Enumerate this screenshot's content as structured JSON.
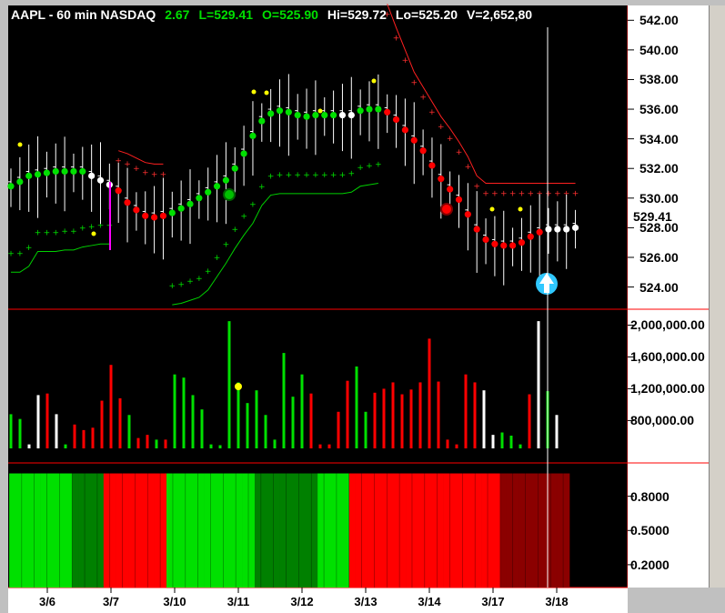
{
  "header": {
    "symbol": "AAPL - 60 min  NASDAQ",
    "change": "2.67",
    "low": "L=529.41",
    "open": "O=525.90",
    "high": "Hi=529.72",
    "lo": "Lo=525.20",
    "volume": "V=2,652,80"
  },
  "last_price_label": "529.41",
  "colors": {
    "up": "#00e000",
    "down": "#ff0000",
    "neutral": "#ffffff",
    "dark_up": "#008000",
    "dark_down": "#8b0000",
    "background": "#000000",
    "pane_divider": "#ff0000"
  },
  "chart_data": [
    {
      "type": "line",
      "pane": "price",
      "ylim": [
        522.5,
        543.0
      ],
      "yticks": [
        "542.00",
        "540.00",
        "538.00",
        "536.00",
        "534.00",
        "532.00",
        "530.00",
        "528.00",
        "526.00",
        "524.00"
      ],
      "ytick_values": [
        542,
        540,
        538,
        536,
        534,
        532,
        530,
        528,
        526,
        524
      ],
      "xtick_labels": [
        "3/6",
        "3/7",
        "3/10",
        "3/11",
        "3/12",
        "3/13",
        "3/14",
        "3/17",
        "3/18"
      ],
      "bars": 64,
      "close_dots": [
        530.8,
        531.1,
        531.5,
        531.6,
        531.7,
        531.8,
        531.8,
        531.8,
        531.8,
        531.5,
        531.2,
        530.9,
        530.5,
        529.7,
        529.2,
        528.8,
        528.7,
        528.8,
        529.0,
        529.3,
        529.6,
        530.0,
        530.4,
        530.8,
        531.2,
        532.0,
        533.0,
        534.2,
        535.2,
        535.7,
        535.9,
        535.8,
        535.6,
        535.5,
        535.6,
        535.6,
        535.6,
        535.6,
        535.6,
        535.9,
        536.0,
        536.0,
        535.8,
        535.3,
        534.6,
        533.9,
        533.2,
        532.2,
        531.3,
        530.6,
        529.9,
        528.9,
        527.9,
        527.2,
        526.9,
        526.8,
        526.8,
        527.0,
        527.4,
        527.7,
        527.9,
        527.9,
        527.9,
        528.0
      ],
      "dot_colors": [
        "g",
        "g",
        "g",
        "g",
        "g",
        "g",
        "g",
        "g",
        "g",
        "w",
        "w",
        "w",
        "r",
        "r",
        "r",
        "r",
        "r",
        "r",
        "g",
        "g",
        "g",
        "g",
        "g",
        "g",
        "g",
        "g",
        "g",
        "g",
        "g",
        "g",
        "g",
        "g",
        "g",
        "g",
        "g",
        "g",
        "g",
        "w",
        "w",
        "g",
        "g",
        "g",
        "r",
        "r",
        "r",
        "r",
        "r",
        "r",
        "r",
        "r",
        "r",
        "r",
        "r",
        "r",
        "r",
        "r",
        "r",
        "r",
        "r",
        "r",
        "w",
        "w",
        "w",
        "w"
      ],
      "upper_band": [
        null,
        null,
        null,
        null,
        null,
        null,
        null,
        null,
        null,
        null,
        null,
        null,
        533.2,
        533.0,
        532.7,
        532.4,
        532.3,
        532.3,
        null,
        null,
        null,
        null,
        null,
        null,
        null,
        null,
        null,
        null,
        null,
        null,
        null,
        null,
        null,
        null,
        null,
        null,
        null,
        null,
        null,
        null,
        null,
        null,
        543.1,
        541.5,
        540.0,
        538.5,
        537.5,
        536.5,
        535.5,
        534.7,
        533.8,
        532.8,
        531.5,
        531.0,
        531.0,
        531.0,
        531.0,
        531.0,
        531.0,
        531.0,
        531.0,
        531.0,
        531.0,
        531.0
      ],
      "lower_band": [
        525.0,
        525.0,
        525.4,
        526.4,
        526.4,
        526.4,
        526.5,
        526.5,
        526.7,
        526.8,
        526.9,
        526.9,
        null,
        null,
        null,
        null,
        null,
        null,
        522.8,
        522.9,
        523.1,
        523.3,
        523.8,
        524.7,
        525.6,
        526.6,
        527.5,
        528.3,
        529.5,
        530.2,
        530.3,
        530.3,
        530.3,
        530.3,
        530.3,
        530.3,
        530.3,
        530.3,
        530.4,
        530.8,
        530.9,
        531.0,
        null,
        null,
        null,
        null,
        null,
        null,
        null,
        null,
        null,
        null,
        null,
        null,
        null,
        null,
        null,
        null,
        null,
        null,
        null,
        null,
        null,
        null
      ],
      "markers": [
        {
          "type": "green-circle",
          "bar": 33,
          "value": 530.6
        },
        {
          "type": "red-circle",
          "bar": 69,
          "value": 530.0
        },
        {
          "type": "up-arrow",
          "bar": 84,
          "value": 524.3
        }
      ]
    },
    {
      "type": "bar",
      "pane": "volume",
      "ylim": [
        450000,
        2200000
      ],
      "yticks": [
        "2,000,000.00",
        "1,600,000.00",
        "1,200,000.00",
        "800,000.00"
      ],
      "ytick_values": [
        2000000,
        1600000,
        1200000,
        800000
      ],
      "values": [
        880000,
        820000,
        500000,
        1120000,
        1140000,
        880000,
        500000,
        750000,
        680000,
        710000,
        1050000,
        1500000,
        1080000,
        870000,
        580000,
        620000,
        560000,
        560000,
        1380000,
        1340000,
        1120000,
        940000,
        500000,
        490000,
        2050000,
        1280000,
        1020000,
        1180000,
        870000,
        560000,
        1650000,
        1100000,
        1380000,
        1140000,
        500000,
        500000,
        910000,
        1300000,
        1480000,
        910000,
        1150000,
        1200000,
        1280000,
        1130000,
        1190000,
        1280000,
        1830000,
        1290000,
        560000,
        500000,
        1380000,
        1280000,
        1180000,
        620000,
        650000,
        610000,
        500000,
        1130000,
        2050000,
        1170000,
        870000
      ],
      "bar_colors": [
        "g",
        "g",
        "w",
        "w",
        "r",
        "w",
        "g",
        "r",
        "r",
        "r",
        "r",
        "r",
        "r",
        "g",
        "r",
        "r",
        "g",
        "r",
        "g",
        "g",
        "g",
        "g",
        "g",
        "g",
        "g",
        "g",
        "g",
        "g",
        "g",
        "g",
        "g",
        "g",
        "g",
        "r",
        "r",
        "r",
        "r",
        "r",
        "g",
        "g",
        "r",
        "r",
        "r",
        "r",
        "r",
        "r",
        "r",
        "r",
        "r",
        "r",
        "r",
        "r",
        "w",
        "w",
        "g",
        "g",
        "g",
        "r",
        "w",
        "g",
        "w"
      ]
    },
    {
      "type": "heatmap",
      "pane": "indicator",
      "ylim": [
        0,
        1.06
      ],
      "yticks": [
        "0.8000",
        "0.5000",
        "0.2000"
      ],
      "ytick_values": [
        0.8,
        0.5,
        0.2
      ],
      "values": [
        1,
        1,
        1,
        1,
        1,
        1,
        1,
        1,
        1,
        1,
        1,
        1,
        1,
        1,
        1,
        1,
        1,
        1,
        1,
        1,
        1,
        1,
        1,
        1,
        1,
        1,
        1,
        1,
        1,
        1,
        1,
        1,
        1,
        1,
        1,
        1,
        1,
        1,
        1,
        1,
        1,
        1,
        1,
        1,
        1,
        1,
        1,
        1,
        1,
        1,
        1,
        1,
        1,
        1,
        1,
        1,
        1,
        1,
        1,
        1,
        1,
        1,
        1,
        1,
        1,
        1,
        1,
        1,
        1,
        1,
        1,
        1,
        1,
        1,
        1,
        1,
        1,
        1,
        1,
        1,
        1,
        1,
        1,
        1,
        1,
        1,
        1,
        1,
        1
      ],
      "cell_colors": [
        "g",
        "g",
        "g",
        "g",
        "g",
        "g",
        "g",
        "g",
        "g",
        "g",
        "G",
        "G",
        "G",
        "G",
        "G",
        "r",
        "r",
        "r",
        "r",
        "r",
        "r",
        "r",
        "r",
        "r",
        "r",
        "g",
        "g",
        "g",
        "g",
        "g",
        "g",
        "g",
        "g",
        "g",
        "g",
        "g",
        "g",
        "g",
        "g",
        "G",
        "G",
        "G",
        "G",
        "G",
        "G",
        "G",
        "G",
        "G",
        "G",
        "g",
        "g",
        "g",
        "g",
        "g",
        "r",
        "r",
        "r",
        "r",
        "r",
        "r",
        "r",
        "r",
        "r",
        "r",
        "r",
        "r",
        "r",
        "r",
        "r",
        "r",
        "r",
        "r",
        "r",
        "r",
        "r",
        "r",
        "r",
        "r",
        "R",
        "R",
        "R",
        "R",
        "R",
        "R",
        "R",
        "R",
        "R",
        "R",
        "R"
      ]
    }
  ]
}
